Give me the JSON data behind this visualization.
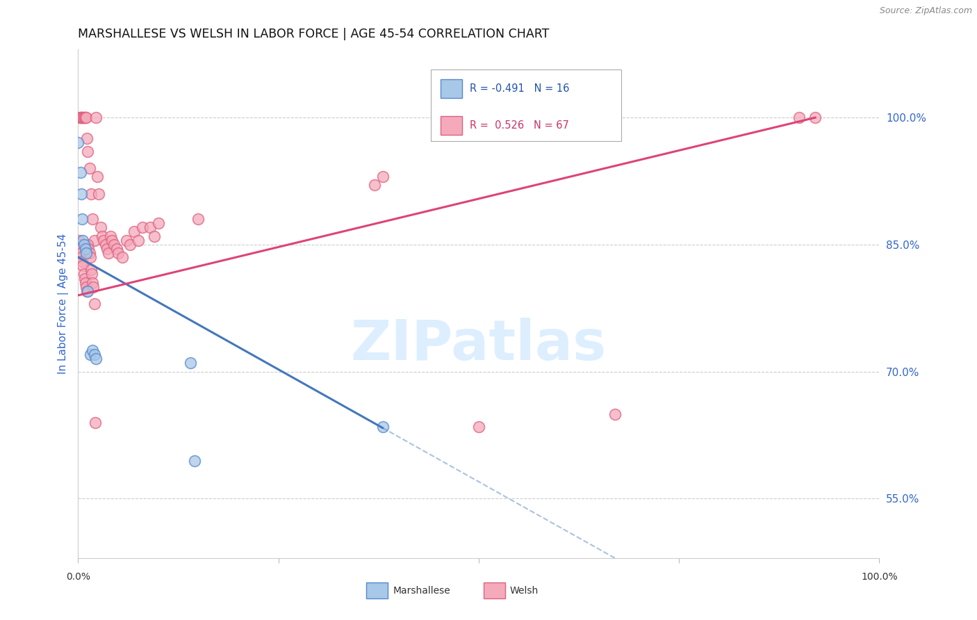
{
  "title": "MARSHALLESE VS WELSH IN LABOR FORCE | AGE 45-54 CORRELATION CHART",
  "source": "Source: ZipAtlas.com",
  "ylabel": "In Labor Force | Age 45-54",
  "yticks": [
    55.0,
    70.0,
    85.0,
    100.0
  ],
  "ytick_labels": [
    "55.0%",
    "70.0%",
    "85.0%",
    "100.0%"
  ],
  "xlim": [
    0.0,
    100.0
  ],
  "ylim": [
    48.0,
    108.0
  ],
  "blue_face_color": "#A8C8E8",
  "blue_edge_color": "#5588CC",
  "pink_face_color": "#F4AABB",
  "pink_edge_color": "#E06080",
  "blue_line_color": "#4477BB",
  "pink_line_color": "#DD4477",
  "grid_color": "#CCCCCC",
  "watermark_color": "#DDEEFF",
  "marshallese_x": [
    0.0,
    0.3,
    0.4,
    0.5,
    0.6,
    0.7,
    0.9,
    1.0,
    1.2,
    1.5,
    1.8,
    2.0,
    2.2,
    14.0,
    14.5,
    38.0
  ],
  "marshallese_y": [
    97.0,
    93.5,
    91.0,
    88.0,
    85.5,
    85.0,
    84.5,
    84.0,
    79.5,
    72.0,
    72.5,
    72.0,
    71.5,
    71.0,
    59.5,
    63.5
  ],
  "welsh_x": [
    0.2,
    0.3,
    0.4,
    0.5,
    0.6,
    0.7,
    0.8,
    0.9,
    1.0,
    1.1,
    1.2,
    1.4,
    1.6,
    1.8,
    2.0,
    2.2,
    2.4,
    2.6,
    2.8,
    3.0,
    3.2,
    3.4,
    3.6,
    3.8,
    4.0,
    4.2,
    4.5,
    4.8,
    5.0,
    5.5,
    6.0,
    6.5,
    7.0,
    7.5,
    8.0,
    9.0,
    9.5,
    10.0,
    15.0,
    37.0,
    38.0,
    50.0,
    67.0,
    90.0,
    92.0,
    0.1,
    0.2,
    0.3,
    0.35,
    0.4,
    0.5,
    0.6,
    0.7,
    0.8,
    0.9,
    1.0,
    1.1,
    1.2,
    1.3,
    1.4,
    1.5,
    1.6,
    1.7,
    1.8,
    1.9,
    2.0,
    2.1
  ],
  "welsh_y": [
    100.0,
    100.0,
    100.0,
    100.0,
    100.0,
    100.0,
    100.0,
    100.0,
    100.0,
    97.5,
    96.0,
    94.0,
    91.0,
    88.0,
    85.5,
    100.0,
    93.0,
    91.0,
    87.0,
    86.0,
    85.5,
    85.0,
    84.5,
    84.0,
    86.0,
    85.5,
    85.0,
    84.5,
    84.0,
    83.5,
    85.5,
    85.0,
    86.5,
    85.5,
    87.0,
    87.0,
    86.0,
    87.5,
    88.0,
    92.0,
    93.0,
    63.5,
    65.0,
    100.0,
    100.0,
    85.5,
    85.0,
    84.5,
    84.0,
    83.5,
    83.0,
    82.5,
    81.5,
    81.0,
    80.5,
    80.0,
    79.5,
    85.0,
    84.5,
    84.0,
    83.5,
    82.0,
    81.5,
    80.5,
    80.0,
    78.0,
    64.0
  ]
}
